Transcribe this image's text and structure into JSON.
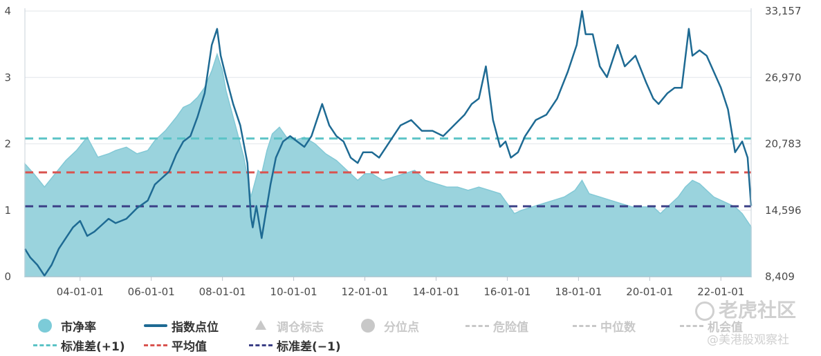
{
  "chart_data": {
    "type": "line",
    "left_axis": {
      "ticks": [
        "0",
        "1",
        "2",
        "3",
        "4"
      ],
      "min": 0,
      "max": 4
    },
    "right_axis": {
      "ticks": [
        "8,409",
        "14,596",
        "20,783",
        "26,970",
        "33,157"
      ],
      "min": 8409,
      "max": 33157
    },
    "x_axis": {
      "ticks": [
        "04-01-01",
        "06-01-01",
        "08-01-01",
        "10-01-01",
        "12-01-01",
        "14-01-01",
        "16-01-01",
        "18-01-01",
        "20-01-01",
        "22-01-01"
      ],
      "tick_years": [
        2004,
        2006,
        2008,
        2010,
        2012,
        2014,
        2016,
        2018,
        2020,
        2022
      ],
      "start_year": 2002.45,
      "end_year": 2022.85
    },
    "grid": true,
    "reference_lines": {
      "std_plus_1": 2.08,
      "mean": 1.57,
      "std_minus_1": 1.06
    },
    "series": [
      {
        "name": "市净率",
        "kind": "area",
        "color": "#9ad3dd",
        "x": [
          2002.45,
          2002.7,
          2003.0,
          2003.3,
          2003.6,
          2003.9,
          2004.2,
          2004.5,
          2004.8,
          2005.0,
          2005.3,
          2005.6,
          2005.9,
          2006.1,
          2006.4,
          2006.7,
          2006.9,
          2007.1,
          2007.3,
          2007.5,
          2007.7,
          2007.85,
          2008.0,
          2008.1,
          2008.2,
          2008.4,
          2008.6,
          2008.8,
          2008.9,
          2009.0,
          2009.1,
          2009.25,
          2009.4,
          2009.6,
          2009.8,
          2010.0,
          2010.3,
          2010.6,
          2010.9,
          2011.2,
          2011.5,
          2011.8,
          2012.0,
          2012.2,
          2012.5,
          2012.8,
          2013.1,
          2013.4,
          2013.7,
          2014.0,
          2014.3,
          2014.6,
          2014.9,
          2015.2,
          2015.5,
          2015.8,
          2016.0,
          2016.2,
          2016.4,
          2016.7,
          2017.0,
          2017.3,
          2017.6,
          2017.9,
          2018.1,
          2018.3,
          2018.6,
          2018.9,
          2019.2,
          2019.5,
          2019.8,
          2020.1,
          2020.3,
          2020.5,
          2020.8,
          2021.0,
          2021.2,
          2021.4,
          2021.6,
          2021.8,
          2022.0,
          2022.2,
          2022.4,
          2022.6,
          2022.85
        ],
        "values": [
          1.7,
          1.55,
          1.35,
          1.55,
          1.75,
          1.9,
          2.1,
          1.8,
          1.85,
          1.9,
          1.95,
          1.85,
          1.9,
          2.05,
          2.2,
          2.4,
          2.55,
          2.6,
          2.7,
          2.85,
          3.1,
          3.35,
          3.1,
          2.8,
          2.6,
          2.2,
          1.8,
          1.2,
          1.4,
          1.6,
          1.55,
          1.9,
          2.15,
          2.25,
          2.1,
          2.05,
          2.1,
          2.0,
          1.85,
          1.75,
          1.6,
          1.45,
          1.55,
          1.55,
          1.45,
          1.5,
          1.55,
          1.6,
          1.45,
          1.4,
          1.35,
          1.35,
          1.3,
          1.35,
          1.3,
          1.25,
          1.1,
          0.95,
          1.0,
          1.05,
          1.1,
          1.15,
          1.2,
          1.3,
          1.45,
          1.25,
          1.2,
          1.15,
          1.1,
          1.05,
          1.05,
          1.05,
          0.95,
          1.05,
          1.2,
          1.35,
          1.45,
          1.4,
          1.3,
          1.2,
          1.15,
          1.1,
          1.05,
          0.95,
          0.75
        ]
      },
      {
        "name": "指数点位",
        "kind": "line",
        "axis": "right",
        "color": "#1e6a93",
        "x": [
          2002.45,
          2002.6,
          2002.8,
          2003.0,
          2003.2,
          2003.4,
          2003.6,
          2003.8,
          2004.0,
          2004.2,
          2004.4,
          2004.6,
          2004.8,
          2005.0,
          2005.3,
          2005.6,
          2005.9,
          2006.1,
          2006.3,
          2006.5,
          2006.7,
          2006.9,
          2007.1,
          2007.3,
          2007.5,
          2007.7,
          2007.85,
          2007.95,
          2008.1,
          2008.3,
          2008.5,
          2008.7,
          2008.8,
          2008.85,
          2008.95,
          2009.1,
          2009.2,
          2009.35,
          2009.5,
          2009.7,
          2009.9,
          2010.1,
          2010.3,
          2010.5,
          2010.8,
          2011.0,
          2011.2,
          2011.4,
          2011.6,
          2011.8,
          2011.95,
          2012.2,
          2012.4,
          2012.6,
          2012.8,
          2013.0,
          2013.3,
          2013.6,
          2013.9,
          2014.2,
          2014.5,
          2014.8,
          2015.0,
          2015.2,
          2015.4,
          2015.6,
          2015.8,
          2015.95,
          2016.1,
          2016.3,
          2016.5,
          2016.8,
          2017.1,
          2017.4,
          2017.7,
          2017.95,
          2018.1,
          2018.2,
          2018.4,
          2018.6,
          2018.8,
          2019.1,
          2019.3,
          2019.6,
          2019.9,
          2020.1,
          2020.25,
          2020.5,
          2020.7,
          2020.9,
          2021.1,
          2021.2,
          2021.4,
          2021.6,
          2021.8,
          2022.0,
          2022.2,
          2022.4,
          2022.6,
          2022.75,
          2022.85
        ],
        "values": [
          11000,
          10200,
          9500,
          8500,
          9500,
          11000,
          12000,
          13000,
          13600,
          12200,
          12600,
          13200,
          13800,
          13400,
          13800,
          14800,
          15500,
          17000,
          17600,
          18200,
          19800,
          21000,
          21500,
          23300,
          25500,
          30000,
          31500,
          29000,
          27000,
          24500,
          22500,
          19000,
          14000,
          13000,
          15000,
          12000,
          14000,
          17000,
          19500,
          21000,
          21500,
          21000,
          20500,
          21500,
          24500,
          22500,
          21500,
          21000,
          19500,
          19000,
          20000,
          20000,
          19500,
          20500,
          21500,
          22500,
          23000,
          22000,
          22000,
          21500,
          22500,
          23500,
          24500,
          25000,
          28000,
          23000,
          20500,
          21000,
          19500,
          20000,
          21500,
          23000,
          23500,
          25000,
          27500,
          30000,
          33157,
          31000,
          31000,
          28000,
          27000,
          30000,
          28000,
          29000,
          26500,
          25000,
          24500,
          25500,
          26000,
          26000,
          31500,
          29000,
          29500,
          29000,
          27500,
          26000,
          24000,
          20000,
          21000,
          19500,
          15000
        ]
      }
    ]
  },
  "legend": {
    "items": [
      {
        "label": "市净率",
        "color": "#7ccbd8",
        "active": true
      },
      {
        "label": "指数点位",
        "color": "#1e6a93",
        "active": true
      },
      {
        "label": "调仓标志",
        "color": "#c8c8c8",
        "active": false
      },
      {
        "label": "分位点",
        "color": "#c8c8c8",
        "active": false
      },
      {
        "label": "危险值",
        "color": "#c8c8c8",
        "active": false
      },
      {
        "label": "中位数",
        "color": "#c8c8c8",
        "active": false
      },
      {
        "label": "机会值",
        "color": "#c8c8c8",
        "active": false
      },
      {
        "label": "标准差(+1)",
        "color": "#5bc3c6",
        "active": true
      },
      {
        "label": "平均值",
        "color": "#d9534f",
        "active": true
      },
      {
        "label": "标准差(−1)",
        "color": "#3b3f86",
        "active": true
      }
    ]
  },
  "watermark": {
    "line1": "老虎社区",
    "line2": "@美港股观察社"
  }
}
